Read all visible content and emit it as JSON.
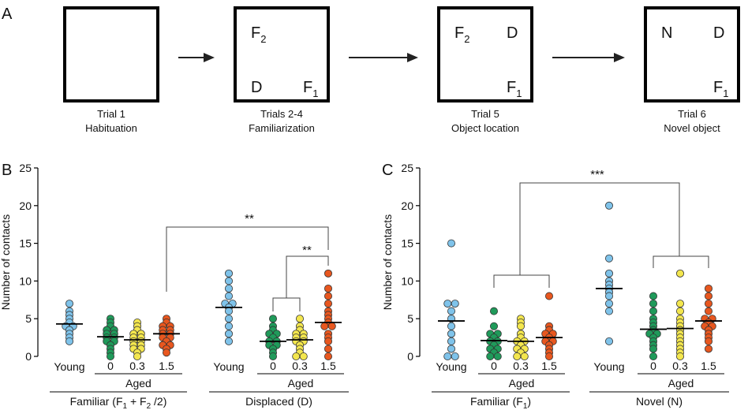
{
  "panel_a": {
    "letter": "A",
    "trials": [
      {
        "line1": "Trial 1",
        "line2": "Habituation",
        "objects": []
      },
      {
        "line1": "Trials 2-4",
        "line2": "Familiarization",
        "objects": [
          {
            "label": "F",
            "sub": "2",
            "pos": "top-left"
          },
          {
            "label": "D",
            "sub": "",
            "pos": "bottom-left"
          },
          {
            "label": "F",
            "sub": "1",
            "pos": "bottom-right"
          }
        ]
      },
      {
        "line1": "Trial 5",
        "line2": "Object location",
        "objects": [
          {
            "label": "F",
            "sub": "2",
            "pos": "top-left"
          },
          {
            "label": "D",
            "sub": "",
            "pos": "top-right"
          },
          {
            "label": "F",
            "sub": "1",
            "pos": "bottom-right"
          }
        ]
      },
      {
        "line1": "Trial 6",
        "line2": "Novel object",
        "objects": [
          {
            "label": "N",
            "sub": "",
            "pos": "top-left"
          },
          {
            "label": "D",
            "sub": "",
            "pos": "top-right"
          },
          {
            "label": "F",
            "sub": "1",
            "pos": "bottom-right"
          }
        ]
      }
    ]
  },
  "colors": {
    "young": "#7fc3ea",
    "aged_0": "#1f9a5a",
    "aged_03": "#f3e64e",
    "aged_15": "#e8571f"
  },
  "chart_data": [
    {
      "type": "scatter",
      "panel": "B",
      "ylabel": "Number of contacts",
      "ylim": [
        0,
        25
      ],
      "yticks": [
        0,
        5,
        10,
        15,
        20,
        25
      ],
      "dose_labels": [
        "0",
        "0.3",
        "1.5"
      ],
      "young_label": "Young",
      "aged_label": "Aged",
      "groups": [
        {
          "title": "Familiar (F",
          "title_sub1": "1",
          "title_mid": " + F",
          "title_sub2": "2",
          "title_end": " /2)",
          "series": [
            {
              "name": "Young",
              "color_key": "young",
              "mean": 4.3,
              "values": [
                7,
                6,
                5.5,
                5,
                4.5,
                4,
                4,
                3.5,
                3,
                2.5,
                2
              ]
            },
            {
              "name": "Aged 0",
              "color_key": "aged_0",
              "mean": 2.6,
              "values": [
                5,
                4.5,
                4,
                3.5,
                3.5,
                3,
                3,
                2.5,
                2.5,
                2,
                2,
                1.5,
                1,
                0.5,
                0
              ]
            },
            {
              "name": "Aged 0.3",
              "color_key": "aged_03",
              "mean": 2.2,
              "values": [
                4.5,
                4,
                3.5,
                3,
                3,
                2.5,
                2.5,
                2,
                2,
                1.5,
                1.5,
                1,
                1,
                0.5,
                0
              ]
            },
            {
              "name": "Aged 1.5",
              "color_key": "aged_15",
              "mean": 3.0,
              "values": [
                5,
                4.5,
                4,
                4,
                3.5,
                3.5,
                3,
                3,
                2.5,
                2.5,
                2,
                1.5,
                1.5,
                1,
                0.5
              ]
            }
          ]
        },
        {
          "title": "Displaced (D)",
          "series": [
            {
              "name": "Young",
              "color_key": "young",
              "mean": 6.5,
              "values": [
                11,
                10,
                9,
                8,
                7,
                7,
                6.5,
                6,
                5,
                4,
                3,
                2
              ]
            },
            {
              "name": "Aged 0",
              "color_key": "aged_0",
              "mean": 2.0,
              "values": [
                5,
                4,
                3.5,
                3,
                3,
                2.5,
                2,
                2,
                1.5,
                1.5,
                1,
                0.5,
                0
              ]
            },
            {
              "name": "Aged 0.3",
              "color_key": "aged_03",
              "mean": 2.2,
              "values": [
                5,
                4,
                3.5,
                3,
                3,
                2.5,
                2.5,
                2,
                2,
                1.5,
                1,
                0.5,
                0,
                0
              ]
            },
            {
              "name": "Aged 1.5",
              "color_key": "aged_15",
              "mean": 4.5,
              "values": [
                11,
                9,
                8,
                7,
                6,
                5.5,
                5,
                4.5,
                4,
                4,
                3,
                2.5,
                2,
                1,
                0
              ]
            }
          ]
        }
      ],
      "significance": [
        {
          "label": "**",
          "from": "Aged 0 + Aged 0.3 (Displaced)",
          "to": "Aged 1.5 (Displaced)"
        },
        {
          "label": "**",
          "from": "Aged 1.5 (Familiar)",
          "to": "Aged 1.5 (Displaced)"
        }
      ]
    },
    {
      "type": "scatter",
      "panel": "C",
      "ylabel": "Number of contacts",
      "ylim": [
        0,
        25
      ],
      "yticks": [
        0,
        5,
        10,
        15,
        20,
        25
      ],
      "dose_labels": [
        "0",
        "0.3",
        "1.5"
      ],
      "young_label": "Young",
      "aged_label": "Aged",
      "groups": [
        {
          "title": "Familiar (F",
          "title_sub1": "1",
          "title_end": ")",
          "series": [
            {
              "name": "Young",
              "color_key": "young",
              "mean": 4.7,
              "values": [
                15,
                7,
                7,
                6,
                5,
                4,
                3,
                2,
                1,
                0,
                0
              ]
            },
            {
              "name": "Aged 0",
              "color_key": "aged_0",
              "mean": 2.1,
              "values": [
                6,
                4,
                3,
                3,
                2.5,
                2,
                2,
                1.5,
                1,
                1,
                0.5,
                0,
                0
              ]
            },
            {
              "name": "Aged 0.3",
              "color_key": "aged_03",
              "mean": 2.0,
              "values": [
                5,
                4.5,
                4,
                3,
                2.5,
                2,
                2,
                1.5,
                1,
                1,
                0.5,
                0,
                0
              ]
            },
            {
              "name": "Aged 1.5",
              "color_key": "aged_15",
              "mean": 2.5,
              "values": [
                8,
                4,
                3.5,
                3,
                3,
                2.5,
                2,
                2,
                1.5,
                1,
                0.5,
                0
              ]
            }
          ]
        },
        {
          "title": "Novel (N)",
          "series": [
            {
              "name": "Young",
              "color_key": "young",
              "mean": 9.0,
              "values": [
                20,
                13,
                11,
                10,
                9.5,
                9,
                8.5,
                8,
                7,
                6,
                2
              ]
            },
            {
              "name": "Aged 0",
              "color_key": "aged_0",
              "mean": 3.6,
              "values": [
                8,
                7,
                6,
                5,
                4.5,
                4,
                3.5,
                3,
                3,
                2.5,
                2,
                1.5,
                1,
                0
              ]
            },
            {
              "name": "Aged 0.3",
              "color_key": "aged_03",
              "mean": 3.7,
              "values": [
                11,
                7,
                6,
                5,
                4.5,
                4,
                3.5,
                3,
                2.5,
                2,
                1.5,
                1,
                0.5,
                0
              ]
            },
            {
              "name": "Aged 1.5",
              "color_key": "aged_15",
              "mean": 4.7,
              "values": [
                9,
                8,
                7,
                6,
                5,
                5,
                4.5,
                4,
                4,
                3.5,
                3,
                2.5,
                2,
                1
              ]
            }
          ]
        }
      ],
      "significance": [
        {
          "label": "***",
          "from": "Aged (Familiar)",
          "to": "Aged (Novel)"
        }
      ]
    }
  ]
}
